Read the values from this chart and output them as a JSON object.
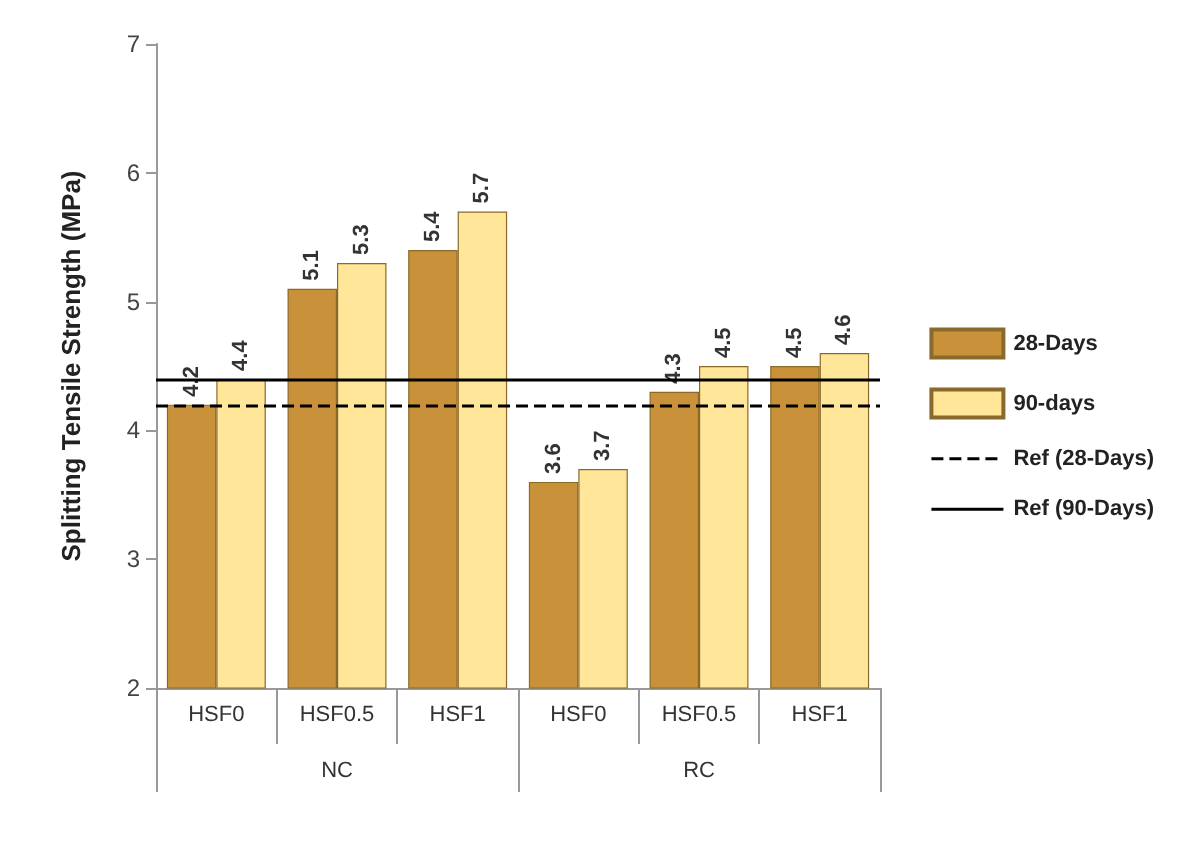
{
  "chart_data": {
    "type": "bar",
    "ylabel": "Splitting Tensile Strength (MPa)",
    "categories": [
      "HSF0",
      "HSF0.5",
      "HSF1",
      "HSF0",
      "HSF0.5",
      "HSF1"
    ],
    "series": [
      {
        "name": "28-Days",
        "color": "#c9923a",
        "values": [
          4.2,
          5.1,
          5.4,
          3.6,
          4.3,
          4.5
        ]
      },
      {
        "name": "90-days",
        "color": "#ffe699",
        "values": [
          4.4,
          5.3,
          5.7,
          3.7,
          4.5,
          4.6
        ]
      }
    ],
    "ref_lines": [
      {
        "axis": "y",
        "value": 4.2,
        "label": "Ref (28-Days)",
        "line_style": "dashed",
        "color": "#000000"
      },
      {
        "axis": "y",
        "value": 4.4,
        "label": "Ref (90-Days)",
        "line_style": "solid",
        "color": "#000000"
      }
    ],
    "annotations": [
      "NC",
      "RC"
    ],
    "ylim": [
      2,
      7
    ],
    "yticks": [
      2,
      3,
      4,
      5,
      6,
      7
    ],
    "grid": false,
    "legend": "right",
    "data_labels": true
  }
}
